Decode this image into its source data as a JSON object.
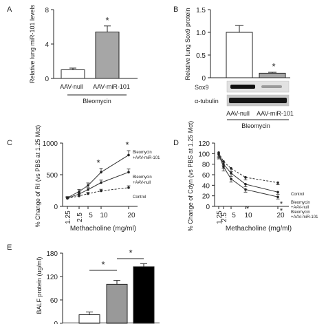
{
  "chart_data": [
    {
      "panel": "A",
      "type": "bar",
      "ylabel": "Relative lung miR-101 levels",
      "yticks": [
        "0",
        "4",
        "8"
      ],
      "ylim": [
        0,
        8
      ],
      "categories": [
        "AAV-null",
        "AAV-miR-101"
      ],
      "values": [
        1.0,
        5.4
      ],
      "errors": [
        0.2,
        0.7
      ],
      "annotations": [
        "*"
      ],
      "group_label": "Bleomycin",
      "colors": [
        "#ffffff",
        "#a6a6a6"
      ]
    },
    {
      "panel": "B",
      "type": "bar",
      "ylabel": "Relative lung Sox9 protein",
      "yticks": [
        "0",
        "0.5",
        "1.0",
        "1.5"
      ],
      "ylim": [
        0,
        1.5
      ],
      "categories": [
        "AAV-null",
        "AAV-miR-101"
      ],
      "values": [
        1.0,
        0.1
      ],
      "errors": [
        0.15,
        0.02
      ],
      "annotations": [
        "*"
      ],
      "blot_labels": [
        "Sox9",
        "α-tubulin"
      ],
      "group_label": "Bleomycin",
      "colors": [
        "#ffffff",
        "#a6a6a6"
      ]
    },
    {
      "panel": "C",
      "type": "line",
      "ylabel": "% Change of RI (vs PBS at 1.25 Mct)",
      "xlabel": "Methacholine (mg/ml)",
      "yticks": [
        "0",
        "500",
        "1000"
      ],
      "xticks": [
        "1.25",
        "2.5",
        "5",
        "10",
        "20"
      ],
      "ylim": [
        0,
        1000
      ],
      "x": [
        1.25,
        2.5,
        5,
        10,
        20
      ],
      "series": [
        {
          "name": "Bleomycin +AAV-miR-101",
          "values": [
            135,
            235,
            330,
            540,
            810
          ],
          "errors": [
            20,
            30,
            40,
            60,
            70
          ],
          "style": "solid"
        },
        {
          "name": "Bleomycin +AAV-null",
          "values": [
            130,
            195,
            265,
            375,
            540
          ],
          "errors": [
            15,
            20,
            30,
            40,
            50
          ],
          "style": "solid"
        },
        {
          "name": "Control",
          "values": [
            125,
            165,
            200,
            245,
            295
          ],
          "errors": [
            10,
            15,
            20,
            25,
            30
          ],
          "style": "dashed"
        }
      ],
      "annotations": [
        "*",
        "*"
      ]
    },
    {
      "panel": "D",
      "type": "line",
      "ylabel": "% Change of Cdyn (vs PBS at 1.25 Mct)",
      "xlabel": "Methacholine (mg/ml)",
      "yticks": [
        "0",
        "20",
        "40",
        "60",
        "80",
        "100",
        "120"
      ],
      "xticks": [
        "1.25",
        "2.5",
        "5",
        "10",
        "20"
      ],
      "ylim": [
        0,
        120
      ],
      "x": [
        1.25,
        2.5,
        5,
        10,
        20
      ],
      "series": [
        {
          "name": "Control",
          "values": [
            102,
            85,
            72,
            55,
            45
          ],
          "errors": [
            8,
            8,
            6,
            5,
            4
          ],
          "style": "dashed"
        },
        {
          "name": "Bleomycin +AAV-null",
          "values": [
            100,
            80,
            63,
            42,
            27
          ],
          "errors": [
            8,
            8,
            6,
            5,
            4
          ],
          "style": "solid"
        },
        {
          "name": "Bleomycin +AAV-miR-101",
          "values": [
            98,
            75,
            52,
            32,
            18
          ],
          "errors": [
            8,
            8,
            6,
            5,
            4
          ],
          "style": "solid"
        }
      ],
      "annotations": [
        "*",
        "*",
        "*"
      ]
    },
    {
      "panel": "E",
      "type": "bar",
      "ylabel": "BALF protein (ug/ml)",
      "yticks": [
        "0",
        "60",
        "120",
        "180"
      ],
      "ylim": [
        0,
        180
      ],
      "values": [
        22,
        100,
        145
      ],
      "errors": [
        7,
        10,
        8
      ],
      "annotations": [
        "*",
        "*"
      ],
      "colors": [
        "#ffffff",
        "#999999",
        "#000000"
      ]
    }
  ]
}
